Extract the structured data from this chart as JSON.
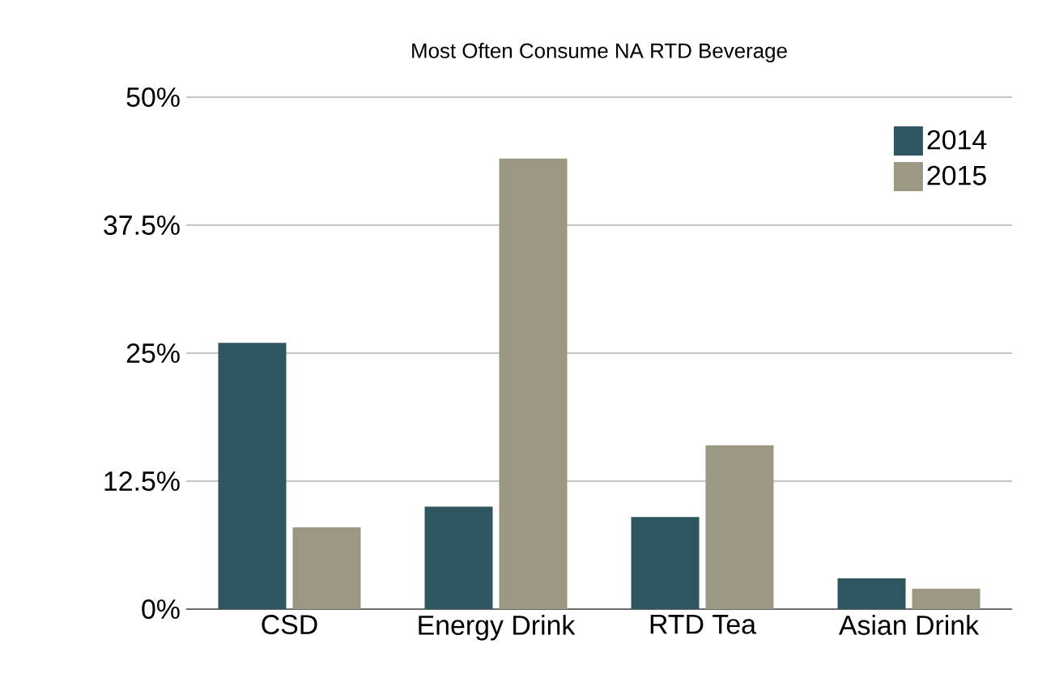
{
  "chart_data": {
    "type": "bar",
    "title": "Most Often Consume NA RTD Beverage",
    "categories": [
      "CSD",
      "Energy Drink",
      "RTD Tea",
      "Asian Drink"
    ],
    "series": [
      {
        "name": "2014",
        "color": "#2f5560",
        "values": [
          26,
          10,
          9,
          3
        ]
      },
      {
        "name": "2015",
        "color": "#9c9782",
        "values": [
          8,
          44,
          16,
          2
        ]
      }
    ],
    "ylim": [
      0,
      50
    ],
    "yticks": [
      {
        "value": 0,
        "label": "0%"
      },
      {
        "value": 12.5,
        "label": "12.5%"
      },
      {
        "value": 25,
        "label": "25%"
      },
      {
        "value": 37.5,
        "label": "37.5%"
      },
      {
        "value": 50,
        "label": "50%"
      }
    ],
    "grid": "y",
    "legend": "top right"
  }
}
